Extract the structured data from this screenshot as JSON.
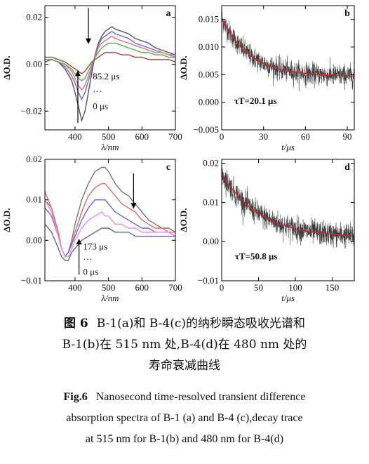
{
  "chart_data": [
    {
      "panel": "a",
      "type": "line",
      "xlabel": "λ/nm",
      "ylabel": "ΔO.D.",
      "xlim": [
        310,
        700
      ],
      "ylim": [
        -0.028,
        0.025
      ],
      "xticks": [
        400,
        500,
        600,
        700
      ],
      "yticks": [
        -0.02,
        0.0,
        0.02
      ],
      "ytick_labels": [
        "−0.02",
        "0.00",
        "0.02"
      ],
      "annotations": [
        "85.2 μs",
        "…",
        "0 μs"
      ],
      "series": [
        {
          "color": "#555555",
          "x": [
            310,
            330,
            350,
            370,
            390,
            400,
            410,
            420,
            430,
            440,
            450,
            460,
            470,
            480,
            490,
            500,
            510,
            520,
            540,
            560,
            580,
            600,
            620,
            640,
            660,
            680,
            700
          ],
          "y": [
            0.001,
            0.002,
            0.001,
            -0.002,
            -0.007,
            -0.012,
            -0.018,
            -0.024,
            -0.02,
            -0.012,
            -0.004,
            0.004,
            0.009,
            0.012,
            0.014,
            0.015,
            0.016,
            0.015,
            0.014,
            0.013,
            0.011,
            0.01,
            0.009,
            0.007,
            0.006,
            0.005,
            0.004
          ]
        },
        {
          "color": "#6a6ad8",
          "x": [
            310,
            330,
            350,
            370,
            390,
            400,
            410,
            420,
            430,
            440,
            450,
            460,
            470,
            480,
            490,
            500,
            510,
            520,
            540,
            560,
            580,
            600,
            620,
            640,
            660,
            680,
            700
          ],
          "y": [
            0.001,
            0.002,
            0.001,
            -0.001,
            -0.005,
            -0.008,
            -0.012,
            -0.015,
            -0.012,
            -0.007,
            -0.002,
            0.004,
            0.008,
            0.011,
            0.012,
            0.013,
            0.014,
            0.013,
            0.012,
            0.011,
            0.009,
            0.008,
            0.007,
            0.006,
            0.005,
            0.004,
            0.004
          ]
        },
        {
          "color": "#e87070",
          "x": [
            310,
            330,
            350,
            370,
            390,
            400,
            410,
            420,
            430,
            440,
            450,
            460,
            470,
            480,
            490,
            500,
            510,
            520,
            540,
            560,
            580,
            600,
            620,
            640,
            660,
            680,
            700
          ],
          "y": [
            0.002,
            0.002,
            0.001,
            0.0,
            -0.003,
            -0.006,
            -0.009,
            -0.011,
            -0.009,
            -0.005,
            -0.001,
            0.003,
            0.007,
            0.009,
            0.01,
            0.011,
            0.012,
            0.011,
            0.01,
            0.009,
            0.008,
            0.007,
            0.006,
            0.005,
            0.005,
            0.004,
            0.003
          ]
        },
        {
          "color": "#50b050",
          "x": [
            310,
            330,
            350,
            370,
            390,
            400,
            410,
            420,
            430,
            440,
            450,
            460,
            470,
            480,
            490,
            500,
            510,
            520,
            540,
            560,
            580,
            600,
            620,
            640,
            660,
            680,
            700
          ],
          "y": [
            0.002,
            0.002,
            0.001,
            0.0,
            -0.002,
            -0.004,
            -0.006,
            -0.007,
            -0.006,
            -0.003,
            0.0,
            0.003,
            0.005,
            0.007,
            0.008,
            0.009,
            0.009,
            0.009,
            0.008,
            0.007,
            0.006,
            0.005,
            0.005,
            0.004,
            0.004,
            0.003,
            0.003
          ]
        },
        {
          "color": "#9a4a3a",
          "x": [
            310,
            330,
            350,
            370,
            390,
            400,
            410,
            420,
            430,
            440,
            450,
            460,
            470,
            480,
            490,
            500,
            510,
            520,
            540,
            560,
            580,
            600,
            620,
            640,
            660,
            680,
            700
          ],
          "y": [
            0.003,
            0.003,
            0.002,
            0.001,
            -0.001,
            -0.002,
            -0.003,
            -0.004,
            -0.003,
            -0.001,
            0.001,
            0.002,
            0.003,
            0.004,
            0.005,
            0.005,
            0.005,
            0.005,
            0.004,
            0.004,
            0.003,
            0.003,
            0.002,
            0.002,
            0.002,
            0.002,
            0.001
          ]
        }
      ]
    },
    {
      "panel": "b",
      "type": "line",
      "xlabel": "t/μs",
      "ylabel": "ΔO.D.",
      "xlim": [
        0,
        95
      ],
      "ylim": [
        -0.005,
        0.0175
      ],
      "xticks": [
        0,
        30,
        60,
        90
      ],
      "yticks": [
        -0.005,
        0.0,
        0.005,
        0.01,
        0.015
      ],
      "ytick_labels": [
        "−0.005",
        "0.000",
        "0.005",
        "0.010",
        "0.015"
      ],
      "annotations": [
        "τT=20.1 μs"
      ],
      "fit": {
        "color": "#dd2222",
        "A": 0.0105,
        "tau": 20.1,
        "offset": 0.0047
      },
      "noise_amplitude": 0.0018
    },
    {
      "panel": "c",
      "type": "line",
      "xlabel": "λ/nm",
      "ylabel": "ΔO.D.",
      "xlim": [
        310,
        700
      ],
      "ylim": [
        -0.01,
        0.02
      ],
      "xticks": [
        400,
        500,
        600,
        700
      ],
      "yticks": [
        -0.01,
        0.0,
        0.01,
        0.02
      ],
      "ytick_labels": [
        "−0.01",
        "0.00",
        "0.01",
        "0.02"
      ],
      "annotations": [
        "173 μs",
        "…",
        "0 μs"
      ],
      "series": [
        {
          "color": "#777777",
          "x": [
            310,
            330,
            350,
            360,
            370,
            380,
            390,
            400,
            420,
            440,
            460,
            480,
            490,
            500,
            520,
            540,
            560,
            580,
            600,
            620,
            640,
            660,
            680,
            700
          ],
          "y": [
            0.01,
            0.008,
            0.002,
            -0.002,
            -0.004,
            -0.003,
            0.0,
            0.004,
            0.01,
            0.014,
            0.017,
            0.018,
            0.018,
            0.017,
            0.014,
            0.012,
            0.011,
            0.009,
            0.007,
            0.005,
            0.004,
            0.003,
            0.003,
            0.002
          ]
        },
        {
          "color": "#ee6666",
          "x": [
            310,
            330,
            350,
            360,
            370,
            380,
            390,
            400,
            420,
            440,
            460,
            480,
            490,
            500,
            520,
            540,
            560,
            580,
            600,
            620,
            640,
            660,
            680,
            700
          ],
          "y": [
            0.012,
            0.008,
            0.002,
            -0.002,
            -0.004,
            -0.003,
            -0.001,
            0.002,
            0.007,
            0.011,
            0.013,
            0.014,
            0.014,
            0.013,
            0.011,
            0.009,
            0.008,
            0.007,
            0.005,
            0.004,
            0.003,
            0.003,
            0.002,
            0.002
          ]
        },
        {
          "color": "#6a6ad8",
          "x": [
            310,
            330,
            350,
            360,
            370,
            380,
            390,
            400,
            420,
            440,
            460,
            480,
            490,
            500,
            520,
            540,
            560,
            580,
            600,
            620,
            640,
            660,
            680,
            700
          ],
          "y": [
            0.008,
            0.006,
            0.001,
            -0.002,
            -0.004,
            -0.003,
            -0.001,
            0.001,
            0.005,
            0.008,
            0.01,
            0.01,
            0.01,
            0.009,
            0.007,
            0.006,
            0.005,
            0.004,
            0.003,
            0.003,
            0.002,
            0.002,
            0.002,
            0.001
          ]
        },
        {
          "color": "#ee88ee",
          "x": [
            310,
            330,
            350,
            360,
            370,
            380,
            390,
            400,
            420,
            440,
            460,
            480,
            490,
            500,
            520,
            540,
            560,
            580,
            600,
            620,
            640,
            660,
            680,
            700
          ],
          "y": [
            0.01,
            0.007,
            0.001,
            -0.002,
            -0.004,
            -0.004,
            -0.002,
            0.0,
            0.003,
            0.005,
            0.006,
            0.007,
            0.006,
            0.006,
            0.004,
            0.004,
            0.003,
            0.003,
            0.002,
            0.002,
            0.002,
            0.002,
            0.002,
            0.001
          ]
        },
        {
          "color": "#666699",
          "x": [
            310,
            330,
            350,
            360,
            370,
            380,
            390,
            400,
            420,
            440,
            460,
            480,
            490,
            500,
            520,
            540,
            560,
            580,
            600,
            620,
            640,
            660,
            680,
            700
          ],
          "y": [
            0.004,
            0.002,
            -0.002,
            -0.004,
            -0.005,
            -0.005,
            -0.003,
            -0.002,
            0.0,
            0.001,
            0.002,
            0.003,
            0.003,
            0.003,
            0.002,
            0.002,
            0.002,
            0.001,
            0.001,
            0.001,
            0.001,
            0.001,
            0.001,
            0.001
          ]
        }
      ]
    },
    {
      "panel": "d",
      "type": "line",
      "xlabel": "t/μs",
      "ylabel": "ΔO.D.",
      "xlim": [
        0,
        180
      ],
      "ylim": [
        -0.01,
        0.021
      ],
      "xticks": [
        0,
        50,
        100,
        150
      ],
      "yticks": [
        -0.01,
        0.0,
        0.01,
        0.02
      ],
      "ytick_labels": [
        "−0.01",
        "0.00",
        "0.01",
        "0.02"
      ],
      "annotations": [
        "τT=50.8 μs"
      ],
      "fit": {
        "color": "#dd2222",
        "A": 0.0165,
        "tau": 50.8,
        "offset": 0.001
      },
      "noise_amplitude": 0.0028
    }
  ],
  "caption_cn": {
    "label": "图 6",
    "lines": [
      "B-1(a)和 B-4(c)的纳秒瞬态吸收光谱和",
      "B-1(b)在 515 nm 处,B-4(d)在 480 nm 处的",
      "寿命衰减曲线"
    ]
  },
  "caption_en": {
    "label": "Fig.6",
    "lines": [
      "Nanosecond time-resolved transient difference",
      "absorption spectra of B-1 (a) and B-4 (c),decay trace",
      "at 515 nm for B-1(b) and 480 nm for B-4(d)"
    ]
  }
}
